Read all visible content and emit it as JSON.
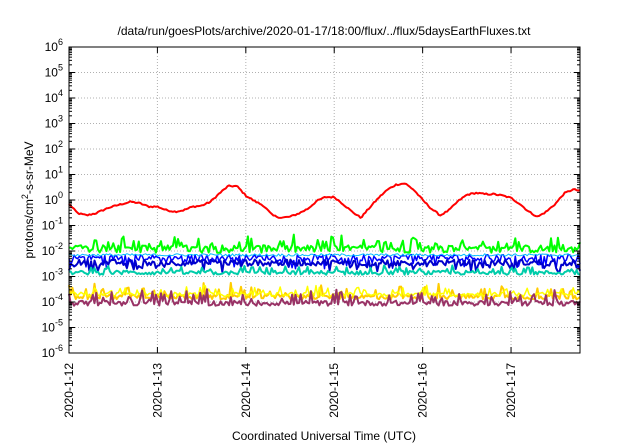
{
  "chart_data": {
    "type": "line",
    "title": "/data/run/goesPlots/archive/2020-01-17/18:00/flux/../flux/5daysEarthFluxes.txt",
    "xlabel": "Coordinated Universal Time (UTC)",
    "ylabel": {
      "prefix": "protons/cm",
      "sup": "2",
      "suffix": "-s-sr-MeV"
    },
    "y_scale": "log",
    "ylim_exponents": [
      -6,
      6
    ],
    "y_tick_exponents": [
      -6,
      -5,
      -4,
      -3,
      -2,
      -1,
      0,
      1,
      2,
      3,
      4,
      5,
      6
    ],
    "y_tick_base": "10",
    "x_range_days": [
      0,
      5.78
    ],
    "x_ticks": [
      {
        "label": "2020-1-12",
        "day": 0
      },
      {
        "label": "2020-1-13",
        "day": 1
      },
      {
        "label": "2020-1-14",
        "day": 2
      },
      {
        "label": "2020-1-15",
        "day": 3
      },
      {
        "label": "2020-1-16",
        "day": 4
      },
      {
        "label": "2020-1-17",
        "day": 5
      }
    ],
    "grid": true,
    "series": [
      {
        "color": "#ff0000",
        "width": 2,
        "noise": 0.03,
        "spikes": 0,
        "points": [
          [
            0,
            0.7
          ],
          [
            0.05,
            0.45
          ],
          [
            0.1,
            0.3
          ],
          [
            0.2,
            0.25
          ],
          [
            0.3,
            0.3
          ],
          [
            0.45,
            0.5
          ],
          [
            0.6,
            0.7
          ],
          [
            0.7,
            0.85
          ],
          [
            0.8,
            0.75
          ],
          [
            0.9,
            0.55
          ],
          [
            1.0,
            0.55
          ],
          [
            1.1,
            0.4
          ],
          [
            1.2,
            0.35
          ],
          [
            1.3,
            0.4
          ],
          [
            1.4,
            0.55
          ],
          [
            1.5,
            0.6
          ],
          [
            1.6,
            0.85
          ],
          [
            1.7,
            1.8
          ],
          [
            1.8,
            3.5
          ],
          [
            1.9,
            3.5
          ],
          [
            2.0,
            1.5
          ],
          [
            2.1,
            0.9
          ],
          [
            2.2,
            0.6
          ],
          [
            2.3,
            0.25
          ],
          [
            2.4,
            0.2
          ],
          [
            2.5,
            0.22
          ],
          [
            2.6,
            0.3
          ],
          [
            2.7,
            0.45
          ],
          [
            2.8,
            0.9
          ],
          [
            2.9,
            1.3
          ],
          [
            3.0,
            1.3
          ],
          [
            3.1,
            0.7
          ],
          [
            3.2,
            0.35
          ],
          [
            3.3,
            0.2
          ],
          [
            3.4,
            0.5
          ],
          [
            3.5,
            1.2
          ],
          [
            3.6,
            2.5
          ],
          [
            3.7,
            4
          ],
          [
            3.8,
            4.5
          ],
          [
            3.9,
            2.5
          ],
          [
            4.0,
            1.0
          ],
          [
            4.1,
            0.45
          ],
          [
            4.2,
            0.25
          ],
          [
            4.3,
            0.4
          ],
          [
            4.4,
            0.9
          ],
          [
            4.5,
            1.6
          ],
          [
            4.6,
            1.9
          ],
          [
            4.7,
            1.7
          ],
          [
            4.8,
            1.7
          ],
          [
            4.9,
            1.5
          ],
          [
            5.0,
            1.2
          ],
          [
            5.1,
            0.7
          ],
          [
            5.2,
            0.35
          ],
          [
            5.3,
            0.22
          ],
          [
            5.4,
            0.35
          ],
          [
            5.5,
            0.7
          ],
          [
            5.6,
            1.8
          ],
          [
            5.7,
            2.6
          ],
          [
            5.78,
            2.3
          ]
        ]
      },
      {
        "color": "#00ff00",
        "width": 2,
        "noise": 0.15,
        "spikes": 0.3,
        "points": [
          [
            0,
            0.012
          ],
          [
            5.78,
            0.012
          ]
        ]
      },
      {
        "color": "#0000ff",
        "width": 1.5,
        "noise": 0.12,
        "spikes": -0.25,
        "points": [
          [
            0,
            0.0055
          ],
          [
            5.78,
            0.0055
          ]
        ]
      },
      {
        "color": "#0000cc",
        "width": 2,
        "noise": 0.12,
        "spikes": -0.2,
        "points": [
          [
            0,
            0.0035
          ],
          [
            5.78,
            0.0035
          ]
        ]
      },
      {
        "color": "#00ccaa",
        "width": 2,
        "noise": 0.08,
        "spikes": 0.15,
        "points": [
          [
            0,
            0.0014
          ],
          [
            5.78,
            0.0014
          ]
        ]
      },
      {
        "color": "#00bbff",
        "width": 1,
        "noise": 0.05,
        "spikes": 0,
        "points": [
          [
            0,
            0.007
          ],
          [
            5.78,
            0.007
          ]
        ]
      },
      {
        "color": "#ffcc00",
        "width": 2,
        "noise": 0.1,
        "spikes": 0.3,
        "points": [
          [
            0,
            0.00016
          ],
          [
            5.78,
            0.00016
          ]
        ]
      },
      {
        "color": "#ffff00",
        "width": 1.5,
        "noise": 0.08,
        "spikes": 0.2,
        "points": [
          [
            0,
            0.0002
          ],
          [
            5.78,
            0.0002
          ]
        ]
      },
      {
        "color": "#993366",
        "width": 2,
        "noise": 0.1,
        "spikes": 0.3,
        "points": [
          [
            0,
            9e-05
          ],
          [
            5.78,
            9e-05
          ]
        ]
      }
    ]
  }
}
